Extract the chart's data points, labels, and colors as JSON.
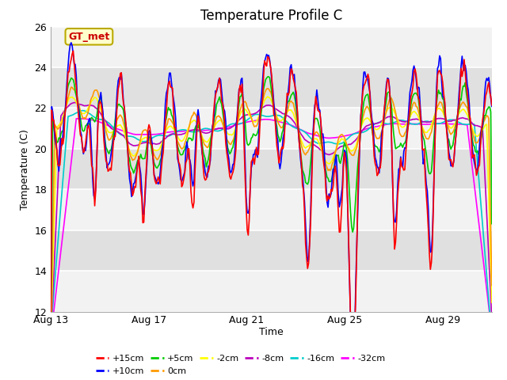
{
  "title": "Temperature Profile C",
  "xlabel": "Time",
  "ylabel": "Temperature (C)",
  "ylim": [
    12,
    26
  ],
  "xlim_days": [
    0,
    18
  ],
  "yticks": [
    12,
    14,
    16,
    18,
    20,
    22,
    24,
    26
  ],
  "xtick_labels": [
    "Aug 13",
    "Aug 17",
    "Aug 21",
    "Aug 25",
    "Aug 29"
  ],
  "xtick_positions": [
    0,
    4,
    8,
    12,
    16
  ],
  "legend_label": "GT_met",
  "legend_box_color": "#ffffcc",
  "legend_box_edge": "#bbaa00",
  "legend_text_color": "#cc0000",
  "series_colors": {
    "+15cm": "#ff0000",
    "+10cm": "#0000ff",
    "+5cm": "#00cc00",
    "0cm": "#ff9900",
    "-2cm": "#ffff00",
    "-8cm": "#bb00bb",
    "-16cm": "#00cccc",
    "-32cm": "#ff00ff"
  },
  "background_color": "#ffffff",
  "plot_bg_color": "#e0e0e0",
  "grid_color": "#ffffff",
  "title_fontsize": 12,
  "axis_label_fontsize": 9,
  "tick_fontsize": 9
}
